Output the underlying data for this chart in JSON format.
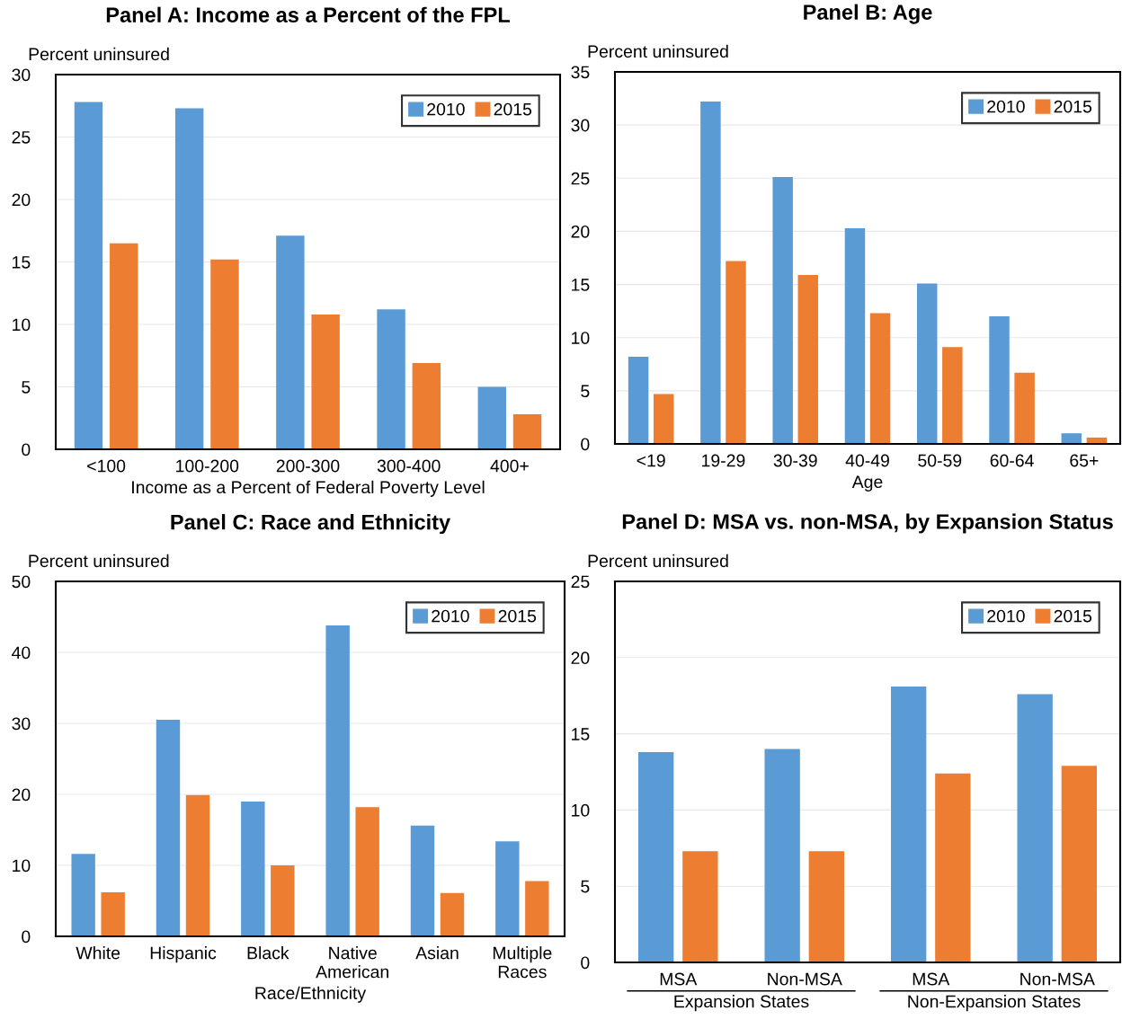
{
  "chart_data": [
    {
      "type": "bar",
      "title": "Panel A: Income as a Percent of the FPL",
      "ylabel": "Percent uninsured",
      "xlabel": "Income as a Percent of Federal Poverty Level",
      "categories": [
        "<100",
        "100-200",
        "200-300",
        "300-400",
        "400+"
      ],
      "series": [
        {
          "name": "2010",
          "color": "#5b9bd5",
          "values": [
            27.8,
            27.3,
            17.1,
            11.2,
            5.0
          ]
        },
        {
          "name": "2015",
          "color": "#ed7d31",
          "values": [
            16.5,
            15.2,
            10.8,
            6.9,
            2.8
          ]
        }
      ],
      "ylim": [
        0,
        30
      ],
      "yticks": [
        0,
        5,
        10,
        15,
        20,
        25,
        30
      ],
      "grid": "y",
      "legend": "top right"
    },
    {
      "type": "bar",
      "title": "Panel B: Age",
      "ylabel": "Percent uninsured",
      "xlabel": "Age",
      "categories": [
        "<19",
        "19-29",
        "30-39",
        "40-49",
        "50-59",
        "60-64",
        "65+"
      ],
      "series": [
        {
          "name": "2010",
          "color": "#5b9bd5",
          "values": [
            8.2,
            32.2,
            25.1,
            20.3,
            15.1,
            12.0,
            1.0
          ]
        },
        {
          "name": "2015",
          "color": "#ed7d31",
          "values": [
            4.7,
            17.2,
            15.9,
            12.3,
            9.1,
            6.7,
            0.6
          ]
        }
      ],
      "ylim": [
        0,
        35
      ],
      "yticks": [
        0,
        5,
        10,
        15,
        20,
        25,
        30,
        35
      ],
      "grid": "y",
      "legend": "top right"
    },
    {
      "type": "bar",
      "title": "Panel C: Race and Ethnicity",
      "ylabel": "Percent uninsured",
      "xlabel": "Race/Ethnicity",
      "categories": [
        "White",
        "Hispanic",
        "Black",
        "Native\nAmerican",
        "Asian",
        "Multiple\nRaces"
      ],
      "series": [
        {
          "name": "2010",
          "color": "#5b9bd5",
          "values": [
            11.6,
            30.5,
            19.0,
            43.8,
            15.6,
            13.4
          ]
        },
        {
          "name": "2015",
          "color": "#ed7d31",
          "values": [
            6.2,
            19.9,
            10.0,
            18.2,
            6.1,
            7.8
          ]
        }
      ],
      "ylim": [
        0,
        50
      ],
      "yticks": [
        0,
        10,
        20,
        30,
        40,
        50
      ],
      "grid": "y",
      "legend": "top right"
    },
    {
      "type": "bar",
      "title": "Panel D: MSA vs. non-MSA, by Expansion Status",
      "ylabel": "Percent uninsured",
      "categories": [
        "MSA",
        "Non-MSA",
        "MSA",
        "Non-MSA"
      ],
      "series": [
        {
          "name": "2010",
          "color": "#5b9bd5",
          "values": [
            13.8,
            14.0,
            18.1,
            17.6
          ]
        },
        {
          "name": "2015",
          "color": "#ed7d31",
          "values": [
            7.3,
            7.3,
            12.4,
            12.9
          ]
        }
      ],
      "annotations": [
        "Expansion States",
        "Non-Expansion States"
      ],
      "ylim": [
        0,
        25
      ],
      "yticks": [
        0,
        5,
        10,
        15,
        20,
        25
      ],
      "grid": "y",
      "legend": "top right"
    }
  ]
}
